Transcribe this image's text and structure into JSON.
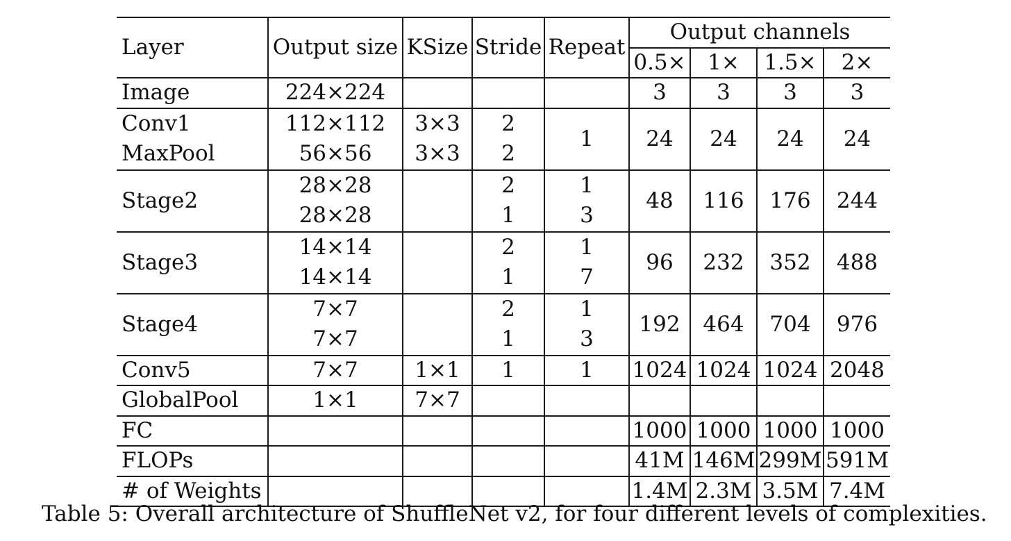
{
  "table": {
    "headers": {
      "layer": "Layer",
      "output_size": "Output size",
      "ksize": "KSize",
      "stride": "Stride",
      "repeat": "Repeat",
      "output_channels": "Output channels",
      "widths": [
        "0.5×",
        "1×",
        "1.5×",
        "2×"
      ]
    },
    "rows": [
      {
        "layer": "Image",
        "output_size": "224×224",
        "ksize": "",
        "stride": "",
        "repeat": "",
        "channels": [
          "3",
          "3",
          "3",
          "3"
        ]
      },
      {
        "layer_a": "Conv1",
        "layer_b": "MaxPool",
        "output_size_a": "112×112",
        "output_size_b": "56×56",
        "ksize_a": "3×3",
        "ksize_b": "3×3",
        "stride_a": "2",
        "stride_b": "2",
        "repeat": "1",
        "channels": [
          "24",
          "24",
          "24",
          "24"
        ]
      },
      {
        "layer": "Stage2",
        "output_size_a": "28×28",
        "output_size_b": "28×28",
        "stride_a": "2",
        "stride_b": "1",
        "repeat_a": "1",
        "repeat_b": "3",
        "channels": [
          "48",
          "116",
          "176",
          "244"
        ]
      },
      {
        "layer": "Stage3",
        "output_size_a": "14×14",
        "output_size_b": "14×14",
        "stride_a": "2",
        "stride_b": "1",
        "repeat_a": "1",
        "repeat_b": "7",
        "channels": [
          "96",
          "232",
          "352",
          "488"
        ]
      },
      {
        "layer": "Stage4",
        "output_size_a": "7×7",
        "output_size_b": "7×7",
        "stride_a": "2",
        "stride_b": "1",
        "repeat_a": "1",
        "repeat_b": "3",
        "channels": [
          "192",
          "464",
          "704",
          "976"
        ]
      },
      {
        "layer": "Conv5",
        "output_size": "7×7",
        "ksize": "1×1",
        "stride": "1",
        "repeat": "1",
        "channels": [
          "1024",
          "1024",
          "1024",
          "2048"
        ]
      },
      {
        "layer": "GlobalPool",
        "output_size": "1×1",
        "ksize": "7×7",
        "stride": "",
        "repeat": "",
        "channels": [
          "",
          "",
          "",
          ""
        ]
      },
      {
        "layer": "FC",
        "output_size": "",
        "ksize": "",
        "stride": "",
        "repeat": "",
        "channels": [
          "1000",
          "1000",
          "1000",
          "1000"
        ]
      },
      {
        "layer": "FLOPs",
        "output_size": "",
        "ksize": "",
        "stride": "",
        "repeat": "",
        "channels": [
          "41M",
          "146M",
          "299M",
          "591M"
        ]
      },
      {
        "layer": "# of Weights",
        "output_size": "",
        "ksize": "",
        "stride": "",
        "repeat": "",
        "channels": [
          "1.4M",
          "2.3M",
          "3.5M",
          "7.4M"
        ]
      }
    ]
  },
  "caption": "Table 5: Overall architecture of ShuffleNet v2, for four different levels of complexities."
}
